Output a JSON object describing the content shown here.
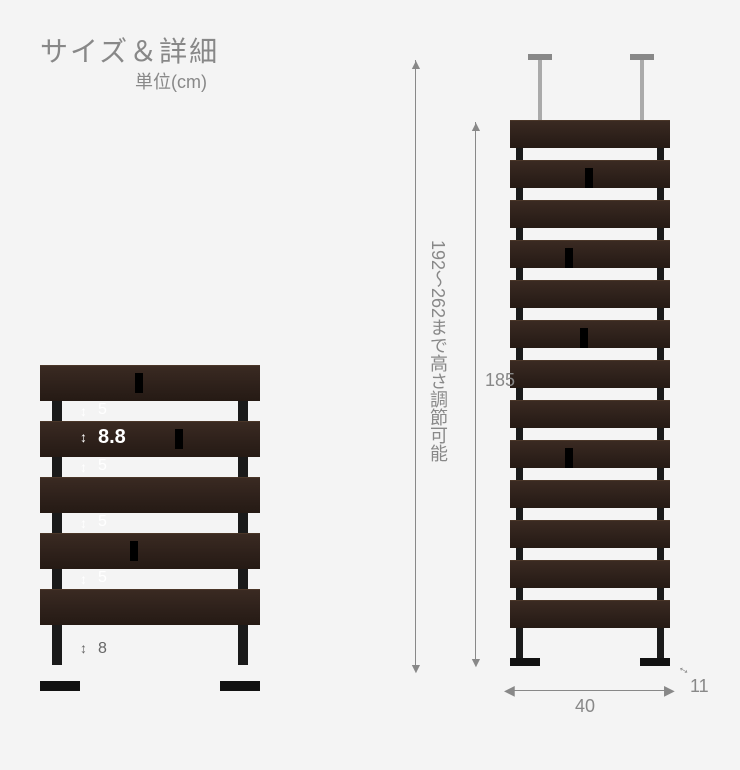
{
  "header": {
    "title": "サイズ＆詳細",
    "unit": "単位(cm)"
  },
  "detail": {
    "gap_label": "5",
    "slat_height_label": "8.8",
    "foot_label": "8",
    "slat_tops": [
      0,
      56,
      112,
      168,
      224
    ],
    "gap_tops": [
      38,
      94,
      150,
      206
    ],
    "slat_color": "#2d201a"
  },
  "full": {
    "height_range_label": "192～262まで高さ調節可能",
    "panel_height_label": "185",
    "width_label": "40",
    "depth_label": "11",
    "slat_count": 13,
    "slat_pitch": 40
  }
}
